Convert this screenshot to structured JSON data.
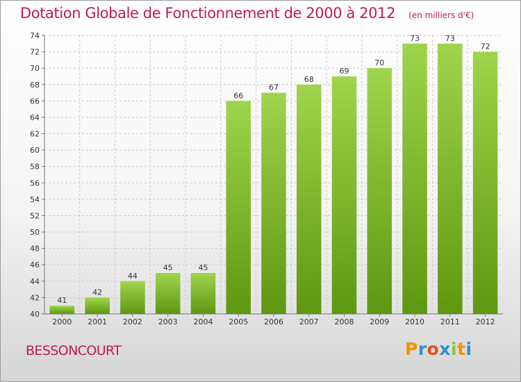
{
  "header": {
    "title": "Dotation Globale de Fonctionnement de 2000 à 2012",
    "subtitle": "(en milliers d'€)"
  },
  "footer": {
    "place": "BESSONCOURT",
    "brand_letters": [
      "P",
      "r",
      "o",
      "x",
      "i",
      "t",
      "i"
    ]
  },
  "colors": {
    "title": "#c2185b",
    "bar_light": "#9fd54c",
    "bar_dark": "#5e9710",
    "grid": "#c9c9c9",
    "brand": [
      "#f39200",
      "#2f8fd1",
      "#e94e1b",
      "#2f8fd1",
      "#8cc63f",
      "#f39200",
      "#2f8fd1"
    ]
  },
  "chart_data": {
    "type": "bar",
    "categories": [
      "2000",
      "2001",
      "2002",
      "2003",
      "2004",
      "2005",
      "2006",
      "2007",
      "2008",
      "2009",
      "2010",
      "2011",
      "2012"
    ],
    "values": [
      41,
      42,
      44,
      45,
      45,
      66,
      67,
      68,
      69,
      70,
      73,
      73,
      72
    ],
    "title": "Dotation Globale de Fonctionnement de 2000 à 2012",
    "subtitle": "(en milliers d'€)",
    "ylim": [
      40,
      74
    ],
    "yticks": [
      40,
      42,
      44,
      46,
      48,
      50,
      52,
      54,
      56,
      58,
      60,
      62,
      64,
      66,
      68,
      70,
      72,
      74
    ],
    "grid": true,
    "data_labels": true
  }
}
